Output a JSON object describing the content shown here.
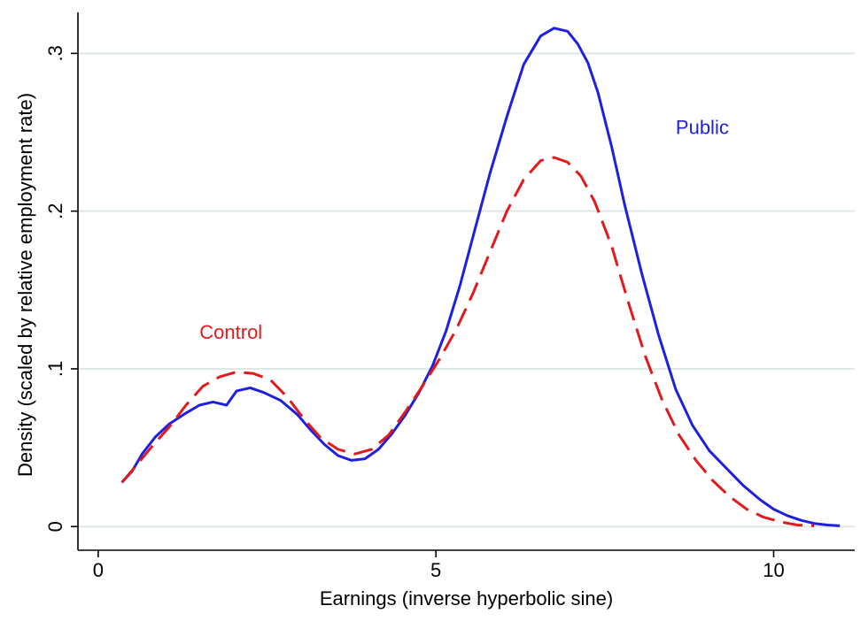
{
  "chart_data": {
    "type": "line",
    "xlabel": "Earnings (inverse hyperbolic sine)",
    "ylabel": "Density (scaled by relative employment rate)",
    "xlim": [
      -0.3,
      11.2
    ],
    "ylim": [
      -0.015,
      0.326
    ],
    "x_ticks": [
      0,
      5,
      10
    ],
    "x_tick_labels": [
      "0",
      "5",
      "10"
    ],
    "y_ticks": [
      0,
      0.1,
      0.2,
      0.3
    ],
    "y_tick_labels": [
      "0",
      ".1",
      ".2",
      ".3"
    ],
    "grid": "horizontal",
    "series": [
      {
        "name": "Public",
        "color": "#1f1fe0",
        "dash": "solid",
        "x": [
          0.35,
          0.5,
          0.65,
          0.85,
          1.05,
          1.3,
          1.5,
          1.7,
          1.9,
          2.05,
          2.25,
          2.45,
          2.7,
          2.95,
          3.15,
          3.35,
          3.55,
          3.75,
          3.95,
          4.15,
          4.35,
          4.55,
          4.75,
          4.95,
          5.15,
          5.35,
          5.55,
          5.8,
          6.05,
          6.3,
          6.55,
          6.75,
          6.95,
          7.1,
          7.25,
          7.4,
          7.6,
          7.8,
          8.05,
          8.3,
          8.55,
          8.8,
          9.05,
          9.3,
          9.55,
          9.8,
          10.0,
          10.2,
          10.4,
          10.6,
          10.8,
          10.98
        ],
        "y": [
          0.028,
          0.035,
          0.046,
          0.057,
          0.065,
          0.072,
          0.077,
          0.079,
          0.077,
          0.086,
          0.088,
          0.085,
          0.08,
          0.071,
          0.061,
          0.052,
          0.045,
          0.042,
          0.043,
          0.049,
          0.059,
          0.071,
          0.085,
          0.102,
          0.124,
          0.152,
          0.184,
          0.224,
          0.26,
          0.293,
          0.311,
          0.316,
          0.314,
          0.306,
          0.294,
          0.275,
          0.241,
          0.203,
          0.16,
          0.121,
          0.087,
          0.064,
          0.048,
          0.037,
          0.026,
          0.017,
          0.011,
          0.007,
          0.004,
          0.002,
          0.001,
          0.0005
        ]
      },
      {
        "name": "Control",
        "color": "#e31a1c",
        "dash": "dashed",
        "x": [
          0.35,
          0.55,
          0.8,
          1.05,
          1.3,
          1.55,
          1.8,
          2.05,
          2.3,
          2.55,
          2.8,
          3.05,
          3.3,
          3.55,
          3.8,
          4.05,
          4.3,
          4.55,
          4.8,
          5.05,
          5.3,
          5.55,
          5.8,
          6.05,
          6.3,
          6.55,
          6.75,
          6.95,
          7.15,
          7.35,
          7.6,
          7.85,
          8.1,
          8.35,
          8.6,
          8.85,
          9.1,
          9.35,
          9.6,
          9.85,
          10.1,
          10.35,
          10.6
        ],
        "y": [
          0.028,
          0.038,
          0.051,
          0.063,
          0.077,
          0.089,
          0.095,
          0.098,
          0.097,
          0.093,
          0.082,
          0.068,
          0.056,
          0.049,
          0.046,
          0.049,
          0.058,
          0.073,
          0.089,
          0.106,
          0.125,
          0.148,
          0.174,
          0.2,
          0.22,
          0.232,
          0.234,
          0.231,
          0.222,
          0.206,
          0.178,
          0.142,
          0.108,
          0.08,
          0.058,
          0.042,
          0.029,
          0.019,
          0.011,
          0.006,
          0.003,
          0.001,
          0.0005
        ]
      }
    ],
    "annotations": [
      {
        "text": "Public",
        "x": 8.55,
        "y": 0.249,
        "color": "#1f1fe0"
      },
      {
        "text": "Control",
        "x": 1.5,
        "y": 0.119,
        "color": "#e31a1c"
      }
    ]
  }
}
